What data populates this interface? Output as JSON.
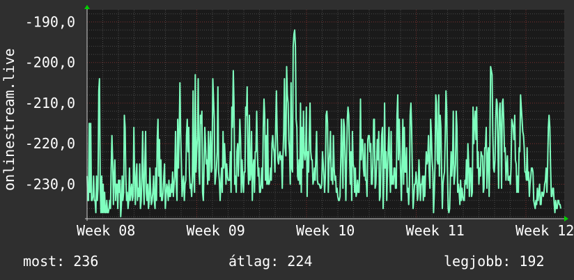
{
  "chart_data": {
    "type": "line",
    "ylabel": "onlinestream.live",
    "y_ticks": [
      -190,
      -200,
      -210,
      -220,
      -230
    ],
    "y_tick_labels": [
      "-190,0",
      "-200,0",
      "-210,0",
      "-220,0",
      "-230,0"
    ],
    "ylim": [
      -238.5,
      -187
    ],
    "x_tick_labels": [
      "Week 08",
      "Week 09",
      "Week 10",
      "Week 11",
      "Week 12"
    ],
    "grid": true,
    "colors": {
      "background": "#2f2f2f",
      "plot_background": "#1a1a1a",
      "line": "#7fffbf",
      "grid_major": "#7a2e2e",
      "grid_minor": "#4a4a4a",
      "axis_arrow": "#00d000"
    },
    "series": [
      {
        "values": [
          -228,
          -234,
          -234,
          -215,
          -232,
          -215,
          -234,
          -234,
          -233,
          -228,
          -234,
          -234,
          -237,
          -228,
          -234,
          -231,
          -207,
          -204,
          -230,
          -237,
          -228,
          -237,
          -230,
          -237,
          -232,
          -237,
          -237,
          -234,
          -237,
          -237,
          -236,
          -234,
          -236,
          -226,
          -218,
          -224,
          -235,
          -228,
          -224,
          -234,
          -230,
          -230,
          -236,
          -229,
          -232,
          -229,
          -238,
          -235,
          -228,
          -234,
          -232,
          -213,
          -216,
          -228,
          -234,
          -232,
          -236,
          -234,
          -226,
          -234,
          -232,
          -230,
          -234,
          -233,
          -216,
          -228,
          -235,
          -228,
          -225,
          -234,
          -231,
          -233,
          -225,
          -236,
          -234,
          -228,
          -217,
          -230,
          -235,
          -225,
          -217,
          -232,
          -234,
          -230,
          -236,
          -234,
          -226,
          -232,
          -235,
          -234,
          -232,
          -228,
          -234,
          -236,
          -226,
          -234,
          -219,
          -214,
          -228,
          -219,
          -233,
          -224,
          -234,
          -234,
          -232,
          -228,
          -225,
          -236,
          -233,
          -230,
          -231,
          -234,
          -229,
          -233,
          -233,
          -230,
          -232,
          -227,
          -233,
          -230,
          -228,
          -217,
          -230,
          -234,
          -214,
          -226,
          -218,
          -205,
          -217,
          -225,
          -233,
          -230,
          -228,
          -234,
          -230,
          -229,
          -218,
          -214,
          -222,
          -216,
          -227,
          -231,
          -230,
          -233,
          -229,
          -207,
          -228,
          -232,
          -203,
          -227,
          -222,
          -218,
          -204,
          -226,
          -230,
          -213,
          -215,
          -212,
          -232,
          -234,
          -226,
          -216,
          -220,
          -225,
          -224,
          -230,
          -217,
          -229,
          -222,
          -217,
          -227,
          -226,
          -204,
          -209,
          -214,
          -230,
          -228,
          -226,
          -222,
          -206,
          -227,
          -229,
          -234,
          -230,
          -226,
          -232,
          -217,
          -226,
          -220,
          -224,
          -230,
          -225,
          -228,
          -229,
          -229,
          -229,
          -222,
          -232,
          -211,
          -216,
          -202,
          -210,
          -230,
          -228,
          -232,
          -222,
          -220,
          -228,
          -221,
          -214,
          -219,
          -232,
          -224,
          -229,
          -232,
          -227,
          -227,
          -211,
          -213,
          -206,
          -225,
          -230,
          -213,
          -229,
          -227,
          -217,
          -234,
          -226,
          -224,
          -232,
          -222,
          -222,
          -212,
          -222,
          -228,
          -226,
          -232,
          -232,
          -230,
          -226,
          -231,
          -216,
          -209,
          -213,
          -229,
          -218,
          -230,
          -214,
          -230,
          -230,
          -229,
          -226,
          -229,
          -220,
          -218,
          -221,
          -222,
          -227,
          -216,
          -207,
          -217,
          -224,
          -225,
          -223,
          -222,
          -224,
          -223,
          -231,
          -223,
          -217,
          -204,
          -221,
          -223,
          -201,
          -208,
          -210,
          -219,
          -222,
          -230,
          -205,
          -226,
          -227,
          -196,
          -193,
          -192,
          -196,
          -214,
          -216,
          -228,
          -229,
          -224,
          -230,
          -210,
          -232,
          -216,
          -226,
          -212,
          -222,
          -224,
          -222,
          -211,
          -233,
          -222,
          -227,
          -218,
          -210,
          -222,
          -224,
          -224,
          -230,
          -229,
          -226,
          -229,
          -223,
          -217,
          -229,
          -230,
          -230,
          -230,
          -231,
          -231,
          -230,
          -222,
          -225,
          -228,
          -232,
          -228,
          -213,
          -212,
          -215,
          -232,
          -225,
          -222,
          -217,
          -229,
          -226,
          -230,
          -218,
          -226,
          -229,
          -228,
          -232,
          -231,
          -233,
          -234,
          -234,
          -233,
          -225,
          -214,
          -222,
          -231,
          -214,
          -216,
          -224,
          -234,
          -224,
          -214,
          -211,
          -213,
          -222,
          -230,
          -222,
          -234,
          -217,
          -225,
          -226,
          -232,
          -226,
          -233,
          -232,
          -229,
          -232,
          -232,
          -226,
          -209,
          -224,
          -219,
          -219,
          -226,
          -228,
          -220,
          -229,
          -229,
          -233,
          -219,
          -218,
          -218,
          -222,
          -220,
          -230,
          -230,
          -225,
          -214,
          -214,
          -231,
          -230,
          -225,
          -219,
          -224,
          -217,
          -234,
          -233,
          -224,
          -218,
          -216,
          -236,
          -229,
          -210,
          -226,
          -222,
          -234,
          -226,
          -221,
          -216,
          -226,
          -232,
          -217,
          -230,
          -228,
          -230,
          -226,
          -226,
          -231,
          -231,
          -213,
          -208,
          -224,
          -214,
          -221,
          -228,
          -234,
          -224,
          -214,
          -230,
          -216,
          -227,
          -227,
          -221,
          -232,
          -231,
          -235,
          -230,
          -213,
          -210,
          -216,
          -228,
          -236,
          -233,
          -230,
          -230,
          -227,
          -229,
          -234,
          -232,
          -224,
          -229,
          -234,
          -230,
          -230,
          -228,
          -234,
          -228,
          -233,
          -227,
          -222,
          -225,
          -224,
          -218,
          -227,
          -231,
          -214,
          -218,
          -224,
          -227,
          -237,
          -232,
          -225,
          -208,
          -210,
          -224,
          -225,
          -208,
          -228,
          -213,
          -216,
          -227,
          -236,
          -230,
          -228,
          -227,
          -218,
          -207,
          -212,
          -226,
          -236,
          -237,
          -236,
          -229,
          -222,
          -228,
          -224,
          -212,
          -230,
          -228,
          -225,
          -212,
          -216,
          -232,
          -230,
          -232,
          -235,
          -229,
          -234,
          -231,
          -233,
          -234,
          -234,
          -229,
          -230,
          -224,
          -231,
          -220,
          -225,
          -233,
          -226,
          -226,
          -233,
          -232,
          -211,
          -220,
          -215,
          -212,
          -219,
          -211,
          -226,
          -222,
          -230,
          -226,
          -228,
          -222,
          -223,
          -223,
          -232,
          -231,
          -221,
          -221,
          -216,
          -231,
          -223,
          -221,
          -233,
          -221,
          -201,
          -202,
          -203,
          -217,
          -226,
          -227,
          -224,
          -214,
          -209,
          -210,
          -221,
          -231,
          -212,
          -210,
          -217,
          -231,
          -210,
          -209,
          -214,
          -222,
          -221,
          -229,
          -226,
          -223,
          -229,
          -229,
          -228,
          -230,
          -226,
          -214,
          -215,
          -216,
          -219,
          -213,
          -224,
          -225,
          -232,
          -228,
          -232,
          -221,
          -222,
          -208,
          -211,
          -214,
          -217,
          -218,
          -221,
          -227,
          -227,
          -229,
          -221,
          -229,
          -227,
          -233,
          -230,
          -228,
          -226,
          -226,
          -227,
          -234,
          -235,
          -236,
          -234,
          -235,
          -231,
          -234,
          -232,
          -230,
          -235,
          -235,
          -232,
          -232,
          -233,
          -232,
          -230,
          -229,
          -226,
          -232,
          -226,
          -216,
          -213,
          -216,
          -225,
          -233,
          -233,
          -231,
          -231,
          -235,
          -237,
          -234,
          -236,
          -236,
          -234,
          -234,
          -235,
          -235,
          -236
        ]
      }
    ]
  },
  "footer": {
    "current": "most: 236",
    "average": "átlag: 224",
    "best": "legjobb: 192"
  }
}
